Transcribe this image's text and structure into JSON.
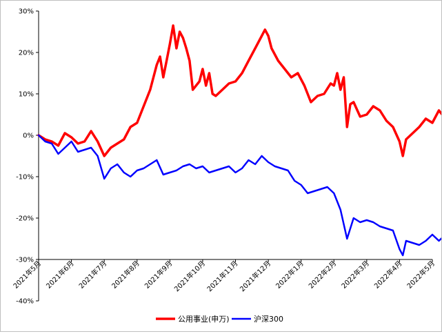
{
  "chart_data": {
    "type": "line",
    "y_ticks": [
      "30%",
      "20%",
      "10%",
      "0%",
      "-10%",
      "-20%",
      "-30%",
      "-40%"
    ],
    "ylim": [
      -40,
      30
    ],
    "x_ticks": [
      "2021年5月",
      "2021年6月",
      "2021年7月",
      "2021年8月",
      "2021年9月",
      "2021年10月",
      "2021年11月",
      "2021年12月",
      "2022年1月",
      "2022年2月",
      "2022年3月",
      "2022年4月",
      "2022年5月"
    ],
    "legend_position": "bottom",
    "grid": false,
    "series": [
      {
        "name": "公用事业(申万)",
        "color": "#ff0000",
        "points": [
          [
            0,
            0.0
          ],
          [
            0.2,
            -1.0
          ],
          [
            0.4,
            -1.5
          ],
          [
            0.6,
            -2.5
          ],
          [
            0.8,
            0.5
          ],
          [
            1.0,
            -0.5
          ],
          [
            1.2,
            -2.0
          ],
          [
            1.4,
            -1.5
          ],
          [
            1.6,
            1.0
          ],
          [
            1.8,
            -1.5
          ],
          [
            2.0,
            -5.0
          ],
          [
            2.2,
            -3.0
          ],
          [
            2.4,
            -2.0
          ],
          [
            2.6,
            -1.0
          ],
          [
            2.8,
            2.0
          ],
          [
            3.0,
            3.0
          ],
          [
            3.2,
            7.0
          ],
          [
            3.4,
            11.0
          ],
          [
            3.6,
            17.0
          ],
          [
            3.7,
            19.0
          ],
          [
            3.8,
            14.0
          ],
          [
            3.9,
            18.0
          ],
          [
            4.0,
            22.0
          ],
          [
            4.1,
            26.5
          ],
          [
            4.2,
            21.0
          ],
          [
            4.3,
            25.0
          ],
          [
            4.4,
            23.5
          ],
          [
            4.5,
            21.0
          ],
          [
            4.6,
            18.0
          ],
          [
            4.7,
            11.0
          ],
          [
            4.8,
            12.0
          ],
          [
            4.9,
            13.0
          ],
          [
            5.0,
            16.0
          ],
          [
            5.1,
            12.0
          ],
          [
            5.2,
            15.0
          ],
          [
            5.3,
            10.0
          ],
          [
            5.4,
            9.5
          ],
          [
            5.6,
            11.0
          ],
          [
            5.8,
            12.5
          ],
          [
            6.0,
            13.0
          ],
          [
            6.2,
            15.0
          ],
          [
            6.4,
            18.0
          ],
          [
            6.6,
            21.0
          ],
          [
            6.8,
            24.0
          ],
          [
            6.9,
            25.5
          ],
          [
            7.0,
            24.0
          ],
          [
            7.1,
            21.0
          ],
          [
            7.3,
            18.0
          ],
          [
            7.5,
            16.0
          ],
          [
            7.7,
            14.0
          ],
          [
            7.9,
            15.0
          ],
          [
            8.1,
            12.0
          ],
          [
            8.3,
            8.0
          ],
          [
            8.5,
            9.5
          ],
          [
            8.7,
            10.0
          ],
          [
            8.9,
            12.5
          ],
          [
            9.0,
            12.0
          ],
          [
            9.1,
            15.0
          ],
          [
            9.2,
            11.0
          ],
          [
            9.3,
            14.0
          ],
          [
            9.4,
            2.0
          ],
          [
            9.5,
            7.5
          ],
          [
            9.6,
            8.0
          ],
          [
            9.8,
            4.5
          ],
          [
            10.0,
            5.0
          ],
          [
            10.2,
            7.0
          ],
          [
            10.4,
            6.0
          ],
          [
            10.6,
            3.5
          ],
          [
            10.8,
            2.0
          ],
          [
            11.0,
            -1.5
          ],
          [
            11.1,
            -5.0
          ],
          [
            11.2,
            -1.0
          ],
          [
            11.4,
            0.5
          ],
          [
            11.6,
            2.0
          ],
          [
            11.8,
            4.0
          ],
          [
            12.0,
            3.0
          ],
          [
            12.2,
            6.0
          ],
          [
            12.3,
            5.0
          ],
          [
            12.4,
            6.5
          ],
          [
            12.5,
            8.0
          ]
        ]
      },
      {
        "name": "沪深300",
        "color": "#0000ff",
        "points": [
          [
            0,
            0.0
          ],
          [
            0.2,
            -1.5
          ],
          [
            0.4,
            -2.0
          ],
          [
            0.6,
            -4.5
          ],
          [
            0.8,
            -3.0
          ],
          [
            1.0,
            -1.5
          ],
          [
            1.2,
            -4.0
          ],
          [
            1.4,
            -3.5
          ],
          [
            1.6,
            -3.0
          ],
          [
            1.8,
            -5.0
          ],
          [
            2.0,
            -10.5
          ],
          [
            2.2,
            -8.0
          ],
          [
            2.4,
            -7.0
          ],
          [
            2.6,
            -9.0
          ],
          [
            2.8,
            -10.0
          ],
          [
            3.0,
            -8.5
          ],
          [
            3.2,
            -8.0
          ],
          [
            3.4,
            -7.0
          ],
          [
            3.6,
            -6.0
          ],
          [
            3.8,
            -9.5
          ],
          [
            4.0,
            -9.0
          ],
          [
            4.2,
            -8.5
          ],
          [
            4.4,
            -7.5
          ],
          [
            4.6,
            -7.0
          ],
          [
            4.8,
            -8.0
          ],
          [
            5.0,
            -7.5
          ],
          [
            5.2,
            -9.0
          ],
          [
            5.4,
            -8.5
          ],
          [
            5.6,
            -8.0
          ],
          [
            5.8,
            -7.5
          ],
          [
            6.0,
            -9.0
          ],
          [
            6.2,
            -8.0
          ],
          [
            6.4,
            -6.0
          ],
          [
            6.6,
            -7.0
          ],
          [
            6.8,
            -5.0
          ],
          [
            7.0,
            -6.5
          ],
          [
            7.2,
            -7.5
          ],
          [
            7.4,
            -8.0
          ],
          [
            7.6,
            -8.5
          ],
          [
            7.8,
            -11.0
          ],
          [
            8.0,
            -12.0
          ],
          [
            8.2,
            -14.0
          ],
          [
            8.4,
            -13.5
          ],
          [
            8.6,
            -13.0
          ],
          [
            8.8,
            -12.5
          ],
          [
            9.0,
            -14.0
          ],
          [
            9.2,
            -18.0
          ],
          [
            9.4,
            -25.0
          ],
          [
            9.6,
            -20.0
          ],
          [
            9.8,
            -21.0
          ],
          [
            10.0,
            -20.5
          ],
          [
            10.2,
            -21.0
          ],
          [
            10.4,
            -22.0
          ],
          [
            10.6,
            -22.5
          ],
          [
            10.8,
            -23.0
          ],
          [
            11.0,
            -27.5
          ],
          [
            11.1,
            -29.0
          ],
          [
            11.2,
            -25.5
          ],
          [
            11.4,
            -26.0
          ],
          [
            11.6,
            -26.5
          ],
          [
            11.8,
            -25.5
          ],
          [
            12.0,
            -24.0
          ],
          [
            12.2,
            -25.5
          ],
          [
            12.4,
            -24.0
          ],
          [
            12.5,
            -23.5
          ]
        ]
      }
    ]
  }
}
